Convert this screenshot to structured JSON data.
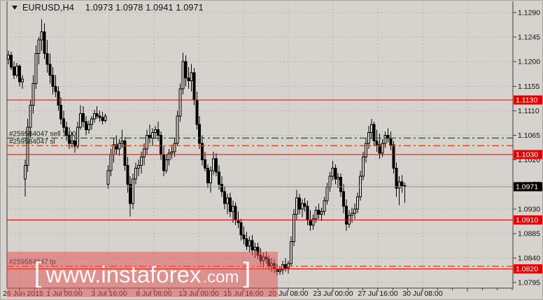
{
  "window": {
    "title_symbol": "EURUSD,H4",
    "title_ohlc": "1.0973 1.0978 1.0941 1.0971"
  },
  "watermark": {
    "bracket_left": "[",
    "main": "www.instaforex",
    "suffix": ".com",
    "bracket_right": "]"
  },
  "colors": {
    "bg": "#d6d3ce",
    "grid": "#b9b6b0",
    "border": "#3c3c3c",
    "candle_stroke": "#000000",
    "bull_fill": "#d6d3ce",
    "bear_fill": "#000000",
    "level_line": "#e60000",
    "level_box_bg": "#e60000",
    "level_box_fg": "#ffffff",
    "current_line": "#8f8f8f",
    "current_box_bg": "#000000",
    "current_box_fg": "#ffffff",
    "sell_line": "#008000",
    "sl_tp_line": "#e8490f",
    "axis_text": "#101010",
    "trade_label_text": "#1c1c1c",
    "watermark_band": "rgba(226,84,84,0.52)",
    "watermark_text": "rgba(255,255,255,0.92)"
  },
  "chart_data": {
    "type": "candlestick",
    "symbol": "EURUSD",
    "timeframe": "H4",
    "title": "EURUSD,H4 1.0973 1.0978 1.0941 1.0971",
    "last_bar": {
      "open": 1.0973,
      "high": 1.0978,
      "low": 1.0941,
      "close": 1.0971
    },
    "y_range": [
      1.076,
      1.131
    ],
    "grid": "dashed",
    "price_ticks": [
      1.129,
      1.1245,
      1.12,
      1.1155,
      1.111,
      1.1065,
      1.102,
      1.0975,
      1.093,
      1.0885,
      1.084,
      1.0795
    ],
    "time_labels": [
      "26 Jun 2015",
      "1 Jul 00:00",
      "3 Jul 16:00",
      "8 Jul 08:00",
      "13 Jul 00:00",
      "15 Jul 16:00",
      "20 Jul 08:00",
      "23 Jul 00:00",
      "27 Jul 16:00",
      "30 Jul 08:00"
    ],
    "levels": [
      {
        "price": 1.113,
        "label": "1.1130"
      },
      {
        "price": 1.103,
        "label": "1.1030"
      },
      {
        "price": 1.091,
        "label": "1.0910"
      },
      {
        "price": 1.082,
        "label": "1.0820"
      }
    ],
    "trade_lines": [
      {
        "label": "#259584047 sell 1.00",
        "price": 1.106,
        "color_key": "sell_line"
      },
      {
        "label": "#259584047 sl",
        "price": 1.1046,
        "color_key": "sl_tp_line"
      },
      {
        "label": "#259584047 tp",
        "price": 1.0825,
        "color_key": "sl_tp_line"
      }
    ],
    "current_price": {
      "price": 1.0971,
      "label": "1.0971"
    },
    "candles": [
      [
        1.1205,
        1.122,
        1.1195,
        1.1212
      ],
      [
        1.1212,
        1.1218,
        1.1185,
        1.119
      ],
      [
        1.119,
        1.12,
        1.1168,
        1.1175
      ],
      [
        1.1175,
        1.1198,
        1.117,
        1.1192
      ],
      [
        1.1192,
        1.1195,
        1.1155,
        1.1163
      ],
      [
        1.1163,
        1.1175,
        1.115,
        1.1168
      ],
      [
        1.0985,
        1.102,
        1.0953,
        1.101
      ],
      [
        1.101,
        1.1095,
        1.0998,
        1.108
      ],
      [
        1.108,
        1.113,
        1.106,
        1.112
      ],
      [
        1.112,
        1.1175,
        1.1105,
        1.116
      ],
      [
        1.116,
        1.123,
        1.115,
        1.1215
      ],
      [
        1.1215,
        1.1245,
        1.1195,
        1.124
      ],
      [
        1.124,
        1.1278,
        1.122,
        1.1255
      ],
      [
        1.1255,
        1.127,
        1.1205,
        1.1215
      ],
      [
        1.1215,
        1.124,
        1.118,
        1.1195
      ],
      [
        1.1195,
        1.1215,
        1.116,
        1.1175
      ],
      [
        1.1175,
        1.119,
        1.114,
        1.1155
      ],
      [
        1.1155,
        1.1175,
        1.1135,
        1.1145
      ],
      [
        1.1145,
        1.1155,
        1.111,
        1.112
      ],
      [
        1.112,
        1.1135,
        1.1085,
        1.1095
      ],
      [
        1.1095,
        1.111,
        1.107,
        1.108
      ],
      [
        1.108,
        1.109,
        1.1055,
        1.1065
      ],
      [
        1.1065,
        1.108,
        1.104,
        1.105
      ],
      [
        1.105,
        1.107,
        1.1042,
        1.1055
      ],
      [
        1.1055,
        1.1065,
        1.1033,
        1.1045
      ],
      [
        1.1045,
        1.109,
        1.104,
        1.108
      ],
      [
        1.108,
        1.112,
        1.1075,
        1.1105
      ],
      [
        1.1105,
        1.1118,
        1.108,
        1.109
      ],
      [
        1.109,
        1.11,
        1.1065,
        1.1075
      ],
      [
        1.1075,
        1.1092,
        1.1068,
        1.1085
      ],
      [
        1.1085,
        1.11,
        1.1075,
        1.1095
      ],
      [
        1.1095,
        1.1112,
        1.1088,
        1.1105
      ],
      [
        1.1105,
        1.1118,
        1.1095,
        1.11
      ],
      [
        1.11,
        1.111,
        1.109,
        1.1098
      ],
      [
        1.1098,
        1.1108,
        1.1085,
        1.1092
      ],
      [
        1.1092,
        1.1105,
        1.1088,
        1.11
      ],
      [
        1.0975,
        1.101,
        1.0967,
        1.1
      ],
      [
        1.1,
        1.104,
        1.099,
        1.103
      ],
      [
        1.103,
        1.106,
        1.1015,
        1.1048
      ],
      [
        1.1048,
        1.1065,
        1.103,
        1.104
      ],
      [
        1.104,
        1.1058,
        1.1028,
        1.105
      ],
      [
        1.105,
        1.1075,
        1.1042,
        1.1055
      ],
      [
        1.1055,
        1.1062,
        1.1,
        1.101
      ],
      [
        1.101,
        1.1025,
        1.096,
        1.0975
      ],
      [
        1.0975,
        1.099,
        1.0916,
        1.094
      ],
      [
        1.094,
        1.0995,
        1.093,
        1.0985
      ],
      [
        1.0985,
        1.1015,
        1.0975,
        1.1005
      ],
      [
        1.1005,
        1.102,
        1.099,
        1.101
      ],
      [
        1.101,
        1.1035,
        1.0995,
        1.1025
      ],
      [
        1.1025,
        1.105,
        1.101,
        1.104
      ],
      [
        1.104,
        1.1075,
        1.103,
        1.1065
      ],
      [
        1.1065,
        1.1085,
        1.105,
        1.106
      ],
      [
        1.106,
        1.1078,
        1.1045,
        1.107
      ],
      [
        1.107,
        1.1082,
        1.1058,
        1.1075
      ],
      [
        1.1075,
        1.109,
        1.1055,
        1.1065
      ],
      [
        1.1065,
        1.1072,
        1.102,
        1.103
      ],
      [
        1.103,
        1.1045,
        1.099,
        1.1
      ],
      [
        1.1,
        1.103,
        1.0995,
        1.102
      ],
      [
        1.102,
        1.104,
        1.101,
        1.1032
      ],
      [
        1.1032,
        1.1048,
        1.1022,
        1.1035
      ],
      [
        1.1035,
        1.106,
        1.1025,
        1.105
      ],
      [
        1.105,
        1.111,
        1.1045,
        1.11
      ],
      [
        1.11,
        1.116,
        1.109,
        1.115
      ],
      [
        1.115,
        1.1216,
        1.114,
        1.12
      ],
      [
        1.12,
        1.1212,
        1.1155,
        1.117
      ],
      [
        1.117,
        1.119,
        1.115,
        1.1165
      ],
      [
        1.1165,
        1.1196,
        1.1145,
        1.118
      ],
      [
        1.118,
        1.1188,
        1.112,
        1.113
      ],
      [
        1.113,
        1.1145,
        1.1075,
        1.1085
      ],
      [
        1.1085,
        1.11,
        1.104,
        1.105
      ],
      [
        1.105,
        1.1065,
        1.101,
        1.102
      ],
      [
        1.102,
        1.1035,
        1.0999,
        1.1005
      ],
      [
        1.1005,
        1.1012,
        1.0968,
        1.0978
      ],
      [
        1.0978,
        1.1008,
        1.096,
        1.1
      ],
      [
        1.1,
        1.1035,
        1.0992,
        1.1022
      ],
      [
        1.1022,
        1.1032,
        1.099,
        1.0998
      ],
      [
        1.0998,
        1.101,
        1.0965,
        1.0975
      ],
      [
        1.0975,
        1.099,
        1.0952,
        1.0962
      ],
      [
        1.0962,
        1.0972,
        1.093,
        1.094
      ],
      [
        1.094,
        1.0958,
        1.092,
        1.095
      ],
      [
        1.095,
        1.096,
        1.0915,
        1.0925
      ],
      [
        1.0925,
        1.0945,
        1.0905,
        1.0935
      ],
      [
        1.0935,
        1.0942,
        1.09,
        1.091
      ],
      [
        1.091,
        1.0925,
        1.0895,
        1.0905
      ],
      [
        1.0905,
        1.0912,
        1.0872,
        1.0882
      ],
      [
        1.0882,
        1.0898,
        1.0865,
        1.0875
      ],
      [
        1.0875,
        1.0888,
        1.0855,
        1.0862
      ],
      [
        1.0862,
        1.088,
        1.085,
        1.0872
      ],
      [
        1.0872,
        1.0882,
        1.0845,
        1.0855
      ],
      [
        1.0855,
        1.0868,
        1.084,
        1.086
      ],
      [
        1.086,
        1.0868,
        1.0838,
        1.0845
      ],
      [
        1.0845,
        1.0858,
        1.0828,
        1.0835
      ],
      [
        1.0835,
        1.085,
        1.0822,
        1.0842
      ],
      [
        1.0842,
        1.0852,
        1.083,
        1.0838
      ],
      [
        1.0838,
        1.0845,
        1.0818,
        1.0825
      ],
      [
        1.0825,
        1.084,
        1.0815,
        1.083
      ],
      [
        1.083,
        1.0838,
        1.0812,
        1.082
      ],
      [
        1.082,
        1.083,
        1.0808,
        1.0815
      ],
      [
        1.0815,
        1.0825,
        1.0809,
        1.0818
      ],
      [
        1.0818,
        1.0835,
        1.081,
        1.0828
      ],
      [
        1.0828,
        1.084,
        1.0815,
        1.0822
      ],
      [
        1.0822,
        1.0835,
        1.0812,
        1.083
      ],
      [
        1.083,
        1.088,
        1.0825,
        1.087
      ],
      [
        1.087,
        1.093,
        1.0862,
        1.092
      ],
      [
        1.092,
        1.0965,
        1.091,
        1.095
      ],
      [
        1.095,
        1.0958,
        1.092,
        1.093
      ],
      [
        1.093,
        1.0948,
        1.0915,
        1.094
      ],
      [
        1.094,
        1.095,
        1.0925,
        1.0935
      ],
      [
        1.0935,
        1.0945,
        1.09,
        1.091
      ],
      [
        1.091,
        1.0928,
        1.089,
        1.09
      ],
      [
        1.09,
        1.092,
        1.0892,
        1.0912
      ],
      [
        1.0912,
        1.0935,
        1.0905,
        1.0928
      ],
      [
        1.0928,
        1.094,
        1.0912,
        1.092
      ],
      [
        1.092,
        1.0932,
        1.0908,
        1.0925
      ],
      [
        1.0925,
        1.0952,
        1.0918,
        1.0945
      ],
      [
        1.0945,
        1.0978,
        1.0938,
        1.097
      ],
      [
        1.097,
        1.0998,
        1.0962,
        1.099
      ],
      [
        1.099,
        1.1018,
        1.0982,
        1.1005
      ],
      [
        1.1005,
        1.1012,
        1.0975,
        1.0985
      ],
      [
        1.0985,
        1.0996,
        1.0968,
        1.0988
      ],
      [
        1.0988,
        1.0995,
        1.0952,
        1.0962
      ],
      [
        1.0962,
        1.0975,
        1.0922,
        1.0935
      ],
      [
        1.0935,
        1.0948,
        1.089,
        1.0902
      ],
      [
        1.0902,
        1.0928,
        1.0895,
        1.0918
      ],
      [
        1.0918,
        1.0932,
        1.0905,
        1.0922
      ],
      [
        1.0922,
        1.094,
        1.0912,
        1.093
      ],
      [
        1.093,
        1.096,
        1.0922,
        1.0952
      ],
      [
        1.0952,
        1.1,
        1.0945,
        1.099
      ],
      [
        1.099,
        1.1035,
        1.0982,
        1.1025
      ],
      [
        1.1025,
        1.106,
        1.1015,
        1.105
      ],
      [
        1.105,
        1.1082,
        1.104,
        1.107
      ],
      [
        1.107,
        1.1095,
        1.1058,
        1.1085
      ],
      [
        1.1085,
        1.109,
        1.1045,
        1.1055
      ],
      [
        1.1055,
        1.1075,
        1.1035,
        1.1048
      ],
      [
        1.1048,
        1.1068,
        1.1022,
        1.1032
      ],
      [
        1.1032,
        1.1058,
        1.1025,
        1.105
      ],
      [
        1.105,
        1.1072,
        1.1042,
        1.1065
      ],
      [
        1.1065,
        1.1078,
        1.1052,
        1.106
      ],
      [
        1.106,
        1.1072,
        1.1038,
        1.1048
      ],
      [
        1.1048,
        1.1055,
        1.0995,
        1.1005
      ],
      [
        1.1005,
        1.1015,
        1.0952,
        1.0968
      ],
      [
        1.0968,
        1.099,
        1.0937,
        1.098
      ],
      [
        1.098,
        1.0992,
        1.096,
        1.0973
      ],
      [
        1.0973,
        1.0978,
        1.0941,
        1.0971
      ]
    ]
  }
}
